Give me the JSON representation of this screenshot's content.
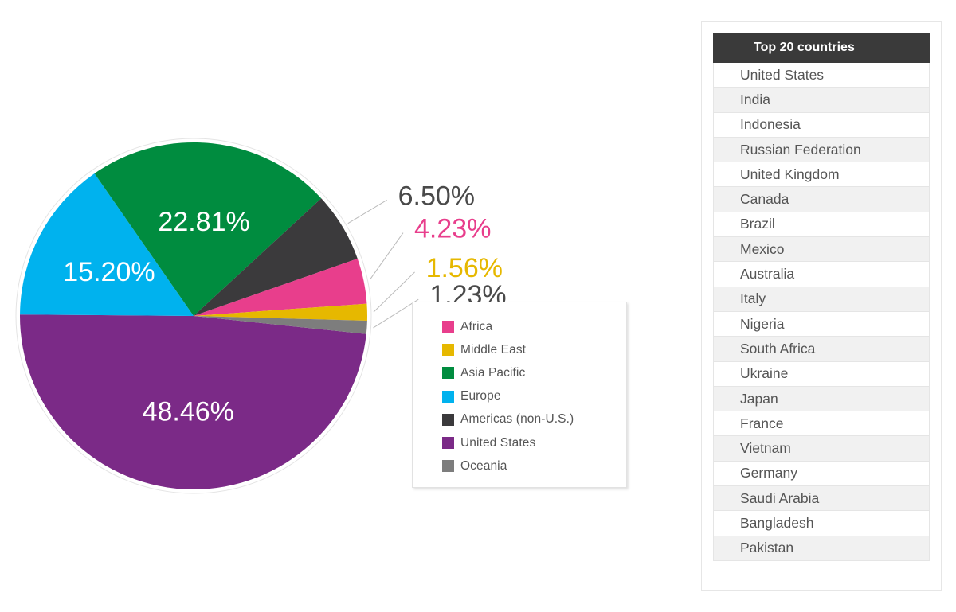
{
  "chart_data": {
    "type": "pie",
    "slices": [
      {
        "name": "United States",
        "value": 48.46,
        "label": "48.46%",
        "color": "#7b2a87",
        "label_color": "#ffffff"
      },
      {
        "name": "Europe",
        "value": 15.2,
        "label": "15.20%",
        "color": "#00b2ee",
        "label_color": "#ffffff"
      },
      {
        "name": "Asia Pacific",
        "value": 22.81,
        "label": "22.81%",
        "color": "#008c3f",
        "label_color": "#ffffff"
      },
      {
        "name": "Americas (non-U.S.)",
        "value": 6.5,
        "label": "6.50%",
        "color": "#3b3a3c",
        "label_color": "#4a4a4a"
      },
      {
        "name": "Africa",
        "value": 4.23,
        "label": "4.23%",
        "color": "#e83e8c",
        "label_color": "#e83e8c"
      },
      {
        "name": "Middle East",
        "value": 1.56,
        "label": "1.56%",
        "color": "#e6b800",
        "label_color": "#e6b800"
      },
      {
        "name": "Oceania",
        "value": 1.23,
        "label": "1.23%",
        "color": "#7d7d7d",
        "label_color": "#4a4a4a"
      }
    ],
    "legend": [
      {
        "label": "Africa",
        "color": "#e83e8c"
      },
      {
        "label": "Middle East",
        "color": "#e6b800"
      },
      {
        "label": "Asia Pacific",
        "color": "#008c3f"
      },
      {
        "label": "Europe",
        "color": "#00b2ee"
      },
      {
        "label": "Americas (non-U.S.)",
        "color": "#3b3a3c"
      },
      {
        "label": "United States",
        "color": "#7b2a87"
      },
      {
        "label": "Oceania",
        "color": "#7d7d7d"
      }
    ],
    "legend_placement": "right"
  },
  "table": {
    "header": "Top 20 countries",
    "rows": [
      "United States",
      "India",
      "Indonesia",
      "Russian Federation",
      "United Kingdom",
      "Canada",
      "Brazil",
      "Mexico",
      "Australia",
      "Italy",
      "Nigeria",
      "South Africa",
      "Ukraine",
      "Japan",
      "France",
      "Vietnam",
      "Germany",
      "Saudi Arabia",
      "Bangladesh",
      "Pakistan"
    ]
  }
}
